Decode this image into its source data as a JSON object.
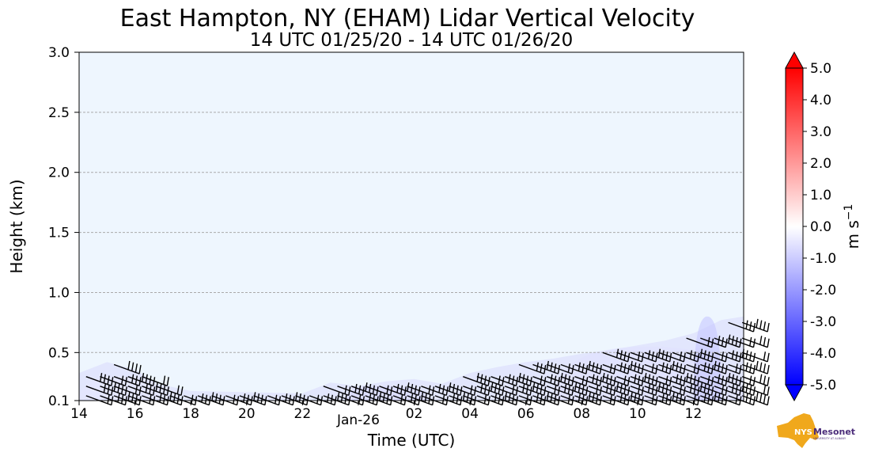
{
  "chart_data": {
    "type": "heatmap",
    "title": "East Hampton, NY (EHAM) Lidar Vertical Velocity",
    "subtitle": "14 UTC 01/25/20 - 14 UTC 01/26/20",
    "xlabel": "Time (UTC)",
    "ylabel": "Height (km)",
    "xlim": [
      14,
      37.8
    ],
    "ylim": [
      0.1,
      3.0
    ],
    "x_ticks": [
      {
        "value": 14,
        "label": "14"
      },
      {
        "value": 16,
        "label": "16"
      },
      {
        "value": 18,
        "label": "18"
      },
      {
        "value": 20,
        "label": "20"
      },
      {
        "value": 22,
        "label": "22"
      },
      {
        "value": 24,
        "label": "Jan-26"
      },
      {
        "value": 26,
        "label": "02"
      },
      {
        "value": 28,
        "label": "04"
      },
      {
        "value": 30,
        "label": "06"
      },
      {
        "value": 32,
        "label": "08"
      },
      {
        "value": 34,
        "label": "10"
      },
      {
        "value": 36,
        "label": "12"
      }
    ],
    "y_ticks": [
      {
        "value": 0.1,
        "label": "0.1"
      },
      {
        "value": 0.5,
        "label": "0.5"
      },
      {
        "value": 1.0,
        "label": "1.0"
      },
      {
        "value": 1.5,
        "label": "1.5"
      },
      {
        "value": 2.0,
        "label": "2.0"
      },
      {
        "value": 2.5,
        "label": "2.5"
      },
      {
        "value": 3.0,
        "label": "3.0"
      }
    ],
    "grid": true,
    "background_color": "#eef6fe",
    "colorbar": {
      "label": "m s",
      "label_exponent": "−1",
      "range": [
        -5.0,
        5.0
      ],
      "ticks": [
        "5.0",
        "4.0",
        "3.0",
        "2.0",
        "1.0",
        "0.0",
        "-1.0",
        "-2.0",
        "-3.0",
        "-4.0",
        "-5.0"
      ],
      "low_color": "#0000ff",
      "mid_color": "#ffffff",
      "high_color": "#ff0000"
    },
    "data_top_height_km": [
      [
        14.0,
        0.33
      ],
      [
        15.0,
        0.42
      ],
      [
        16.0,
        0.36
      ],
      [
        16.8,
        0.24
      ],
      [
        18.0,
        0.18
      ],
      [
        20.0,
        0.17
      ],
      [
        22.0,
        0.16
      ],
      [
        23.0,
        0.25
      ],
      [
        24.0,
        0.22
      ],
      [
        25.0,
        0.26
      ],
      [
        26.0,
        0.28
      ],
      [
        27.0,
        0.24
      ],
      [
        28.0,
        0.33
      ],
      [
        29.0,
        0.38
      ],
      [
        30.0,
        0.42
      ],
      [
        31.0,
        0.45
      ],
      [
        32.0,
        0.49
      ],
      [
        33.0,
        0.52
      ],
      [
        34.0,
        0.56
      ],
      [
        35.0,
        0.6
      ],
      [
        36.0,
        0.66
      ],
      [
        37.0,
        0.77
      ],
      [
        37.8,
        0.8
      ]
    ],
    "weak_downdraft_patches": [
      {
        "t_start": 14.0,
        "t_end": 17.0,
        "h_top": 0.3,
        "velocity": -0.5
      },
      {
        "t_start": 23.5,
        "t_end": 26.5,
        "h_top": 0.22,
        "velocity": -0.8
      },
      {
        "t_start": 31.0,
        "t_end": 37.8,
        "h_top": 0.55,
        "velocity": -0.6
      },
      {
        "t_start": 36.0,
        "t_end": 37.0,
        "h_top": 0.8,
        "velocity": -1.2
      }
    ],
    "wind_barb_levels_km": [
      0.14,
      0.22,
      0.3,
      0.4,
      0.5,
      0.62,
      0.75
    ],
    "wind_barb_interval_hours": 0.5,
    "wind_barb_color": "#000000",
    "wind_direction": "west-northwest"
  },
  "logo": {
    "name": "Mesonet",
    "prefix": "NYS",
    "tagline": "UNIVERSITY AT ALBANY",
    "state_color": "#f0a81c",
    "text_color": "#4b2c7a"
  }
}
